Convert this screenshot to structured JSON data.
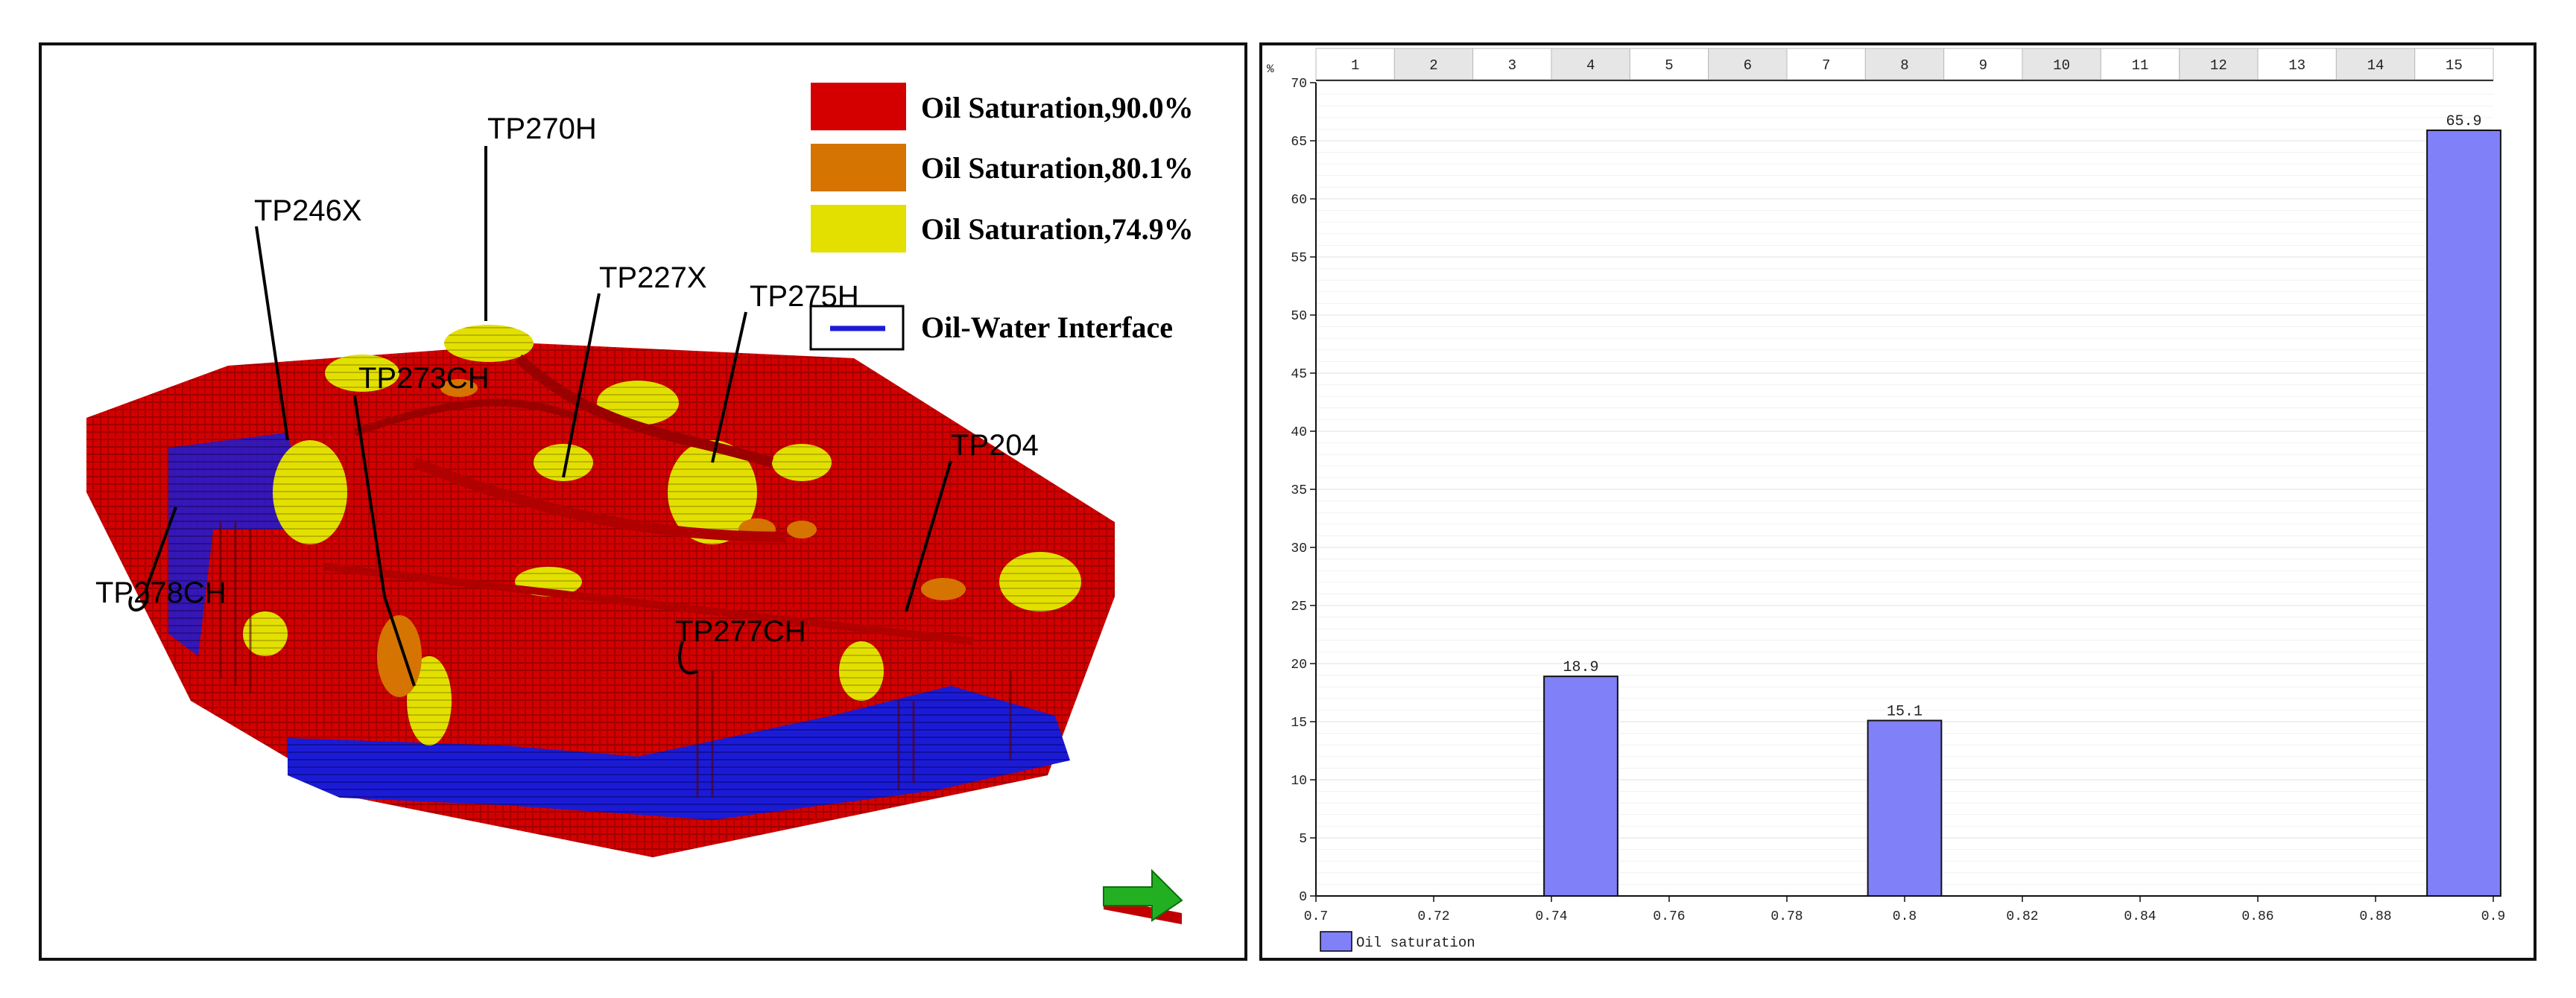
{
  "left_figure": {
    "legend": [
      {
        "label": "Oil Saturation,90.0%",
        "color": "#d40000"
      },
      {
        "label": "Oil Saturation,80.1%",
        "color": "#d57400"
      },
      {
        "label": "Oil Saturation,74.9%",
        "color": "#e3e000"
      },
      {
        "label": "Oil-Water Interface",
        "color": "#1b1bd6"
      }
    ],
    "wells": [
      "TP270H",
      "TP246X",
      "TP227X",
      "TP275H",
      "TP273CH",
      "TP204",
      "TP278CH",
      "TP277CH"
    ]
  },
  "chart_data": {
    "type": "bar",
    "x": [
      0.745,
      0.8,
      0.895
    ],
    "values": [
      18.9,
      15.1,
      65.9
    ],
    "data_labels": [
      "18.9",
      "15.1",
      "65.9"
    ],
    "bin_width": 0.0125,
    "xlim": [
      0.7,
      0.9
    ],
    "ylim": [
      0,
      70
    ],
    "x_ticks": [
      "0.7",
      "0.72",
      "0.74",
      "0.76",
      "0.78",
      "0.8",
      "0.82",
      "0.84",
      "0.86",
      "0.88",
      "0.9"
    ],
    "y_ticks": [
      "0",
      "5",
      "10",
      "15",
      "20",
      "25",
      "30",
      "35",
      "40",
      "45",
      "50",
      "55",
      "60",
      "65",
      "70"
    ],
    "ylabel": "%",
    "bin_labels": [
      "1",
      "2",
      "3",
      "4",
      "5",
      "6",
      "7",
      "8",
      "9",
      "10",
      "11",
      "12",
      "13",
      "14",
      "15"
    ],
    "legend": "Oil saturation",
    "bar_color": "#8080f8"
  }
}
